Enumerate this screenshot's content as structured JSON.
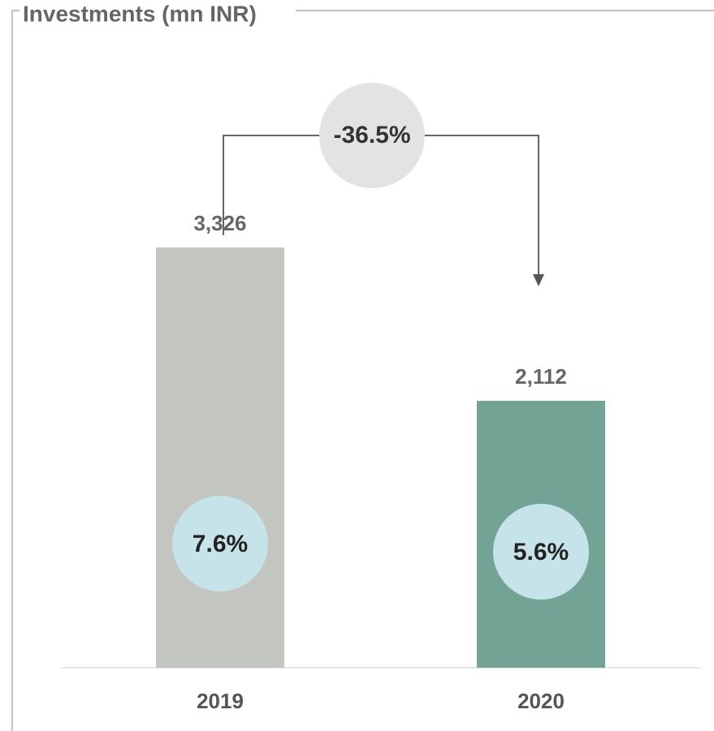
{
  "chart_data": {
    "type": "bar",
    "title": "Investments (mn INR)",
    "categories": [
      "2019",
      "2020"
    ],
    "values": [
      3326,
      2112
    ],
    "value_labels": [
      "3,326",
      "2,112"
    ],
    "colors": [
      "#c3c6c0",
      "#73a394"
    ],
    "ylim": [
      0,
      4000
    ],
    "annotations": {
      "change": "-36.5%",
      "shares": [
        "7.6%",
        "5.6%"
      ]
    }
  }
}
